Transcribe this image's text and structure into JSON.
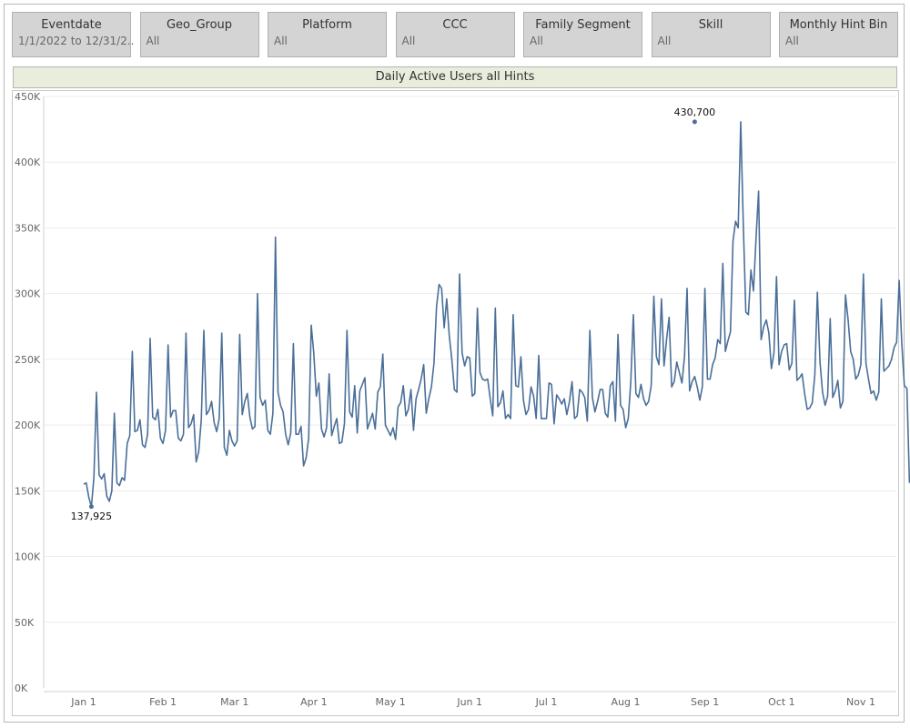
{
  "filters": [
    {
      "name": "Eventdate",
      "value": "1/1/2022 to 12/31/2.."
    },
    {
      "name": "Geo_Group",
      "value": "All"
    },
    {
      "name": "Platform",
      "value": "All"
    },
    {
      "name": "CCC",
      "value": "All"
    },
    {
      "name": "Family Segment",
      "value": "All"
    },
    {
      "name": "Skill",
      "value": "All"
    },
    {
      "name": "Monthly Hint Bin",
      "value": "All"
    }
  ],
  "chart_title": "Daily Active Users all Hints",
  "colors": {
    "line": "#4a6f99",
    "title_bg": "#e8eddc",
    "filter_bg": "#d4d4d4"
  },
  "chart_data": {
    "type": "line",
    "title": "Daily Active Users all Hints",
    "xlabel": "",
    "ylabel": "",
    "ylim": [
      0,
      450000
    ],
    "xlim": [
      "2022-01-01",
      "2022-11-01"
    ],
    "grid": true,
    "y_ticks": [
      0,
      50000,
      100000,
      150000,
      200000,
      250000,
      300000,
      350000,
      400000,
      450000
    ],
    "y_tick_labels": [
      "0K",
      "50K",
      "100K",
      "150K",
      "200K",
      "250K",
      "300K",
      "350K",
      "400K",
      "450K"
    ],
    "x_ticks": [
      "2022-01-01",
      "2022-02-01",
      "2022-03-01",
      "2022-04-01",
      "2022-05-01",
      "2022-06-01",
      "2022-07-01",
      "2022-08-01",
      "2022-09-01",
      "2022-10-01",
      "2022-11-01"
    ],
    "x_tick_labels": [
      "Jan 1",
      "Feb 1",
      "Mar 1",
      "Apr 1",
      "May 1",
      "Jun 1",
      "Jul 1",
      "Aug 1",
      "Sep 1",
      "Oct 1",
      "Nov 1"
    ],
    "annotations": [
      {
        "x": "2022-01-04",
        "y": 137925,
        "label": "137,925"
      },
      {
        "x": "2022-08-28",
        "y": 430700,
        "label": "430,700"
      }
    ],
    "series": [
      {
        "start": "2022-01-01",
        "values": [
          155000,
          156000,
          145000,
          137925,
          160000,
          225000,
          162000,
          159000,
          163000,
          146000,
          142000,
          150000,
          209000,
          156000,
          154000,
          160000,
          158000,
          186000,
          192000,
          256000,
          195000,
          196000,
          204000,
          185000,
          183000,
          193000,
          266000,
          206000,
          204000,
          212000,
          190000,
          186000,
          196000,
          261000,
          206000,
          211000,
          211000,
          190000,
          188000,
          193000,
          270000,
          198000,
          201000,
          208000,
          172000,
          180000,
          204000,
          272000,
          208000,
          211000,
          218000,
          202000,
          195000,
          205000,
          270000,
          183000,
          177000,
          196000,
          188000,
          184000,
          188000,
          269000,
          208000,
          218000,
          224000,
          206000,
          197000,
          199000,
          300000,
          221000,
          215000,
          219000,
          196000,
          193000,
          209000,
          343000,
          225000,
          215000,
          210000,
          193000,
          185000,
          194000,
          262000,
          193000,
          193000,
          199000,
          169000,
          175000,
          190000,
          276000,
          255000,
          222000,
          232000,
          197000,
          191000,
          198000,
          239000,
          192000,
          199000,
          205000,
          186000,
          187000,
          201000,
          272000,
          210000,
          206000,
          230000,
          194000,
          226000,
          231000,
          236000,
          197000,
          203000,
          209000,
          197000,
          225000,
          229000,
          254000,
          200000,
          196000,
          192000,
          198000,
          189000,
          214000,
          217000,
          230000,
          207000,
          212000,
          227000,
          196000,
          220000,
          227000,
          235000,
          246000,
          209000,
          220000,
          229000,
          247000,
          290000,
          307000,
          304000,
          274000,
          296000,
          268000,
          250000,
          227000,
          225000,
          315000,
          255000,
          245000,
          252000,
          251000,
          222000,
          224000,
          289000,
          240000,
          235000,
          234000,
          235000,
          220000,
          207000,
          289000,
          214000,
          217000,
          226000,
          205000,
          208000,
          205000,
          284000,
          230000,
          229000,
          252000,
          219000,
          208000,
          212000,
          229000,
          222000,
          205000,
          253000,
          205000,
          205000,
          205000,
          232000,
          231000,
          201000,
          223000,
          220000,
          216000,
          220000,
          208000,
          218000,
          233000,
          205000,
          207000,
          227000,
          225000,
          221000,
          203000,
          272000,
          221000,
          210000,
          218000,
          227000,
          227000,
          209000,
          206000,
          230000,
          233000,
          203000,
          269000,
          215000,
          212000,
          198000,
          205000,
          233000,
          284000,
          224000,
          221000,
          231000,
          220000,
          215000,
          218000,
          230000,
          298000,
          252000,
          246000,
          296000,
          245000,
          265000,
          282000,
          229000,
          233000,
          248000,
          240000,
          232000,
          252000,
          304000,
          226000,
          233000,
          237000,
          229000,
          219000,
          229000,
          304000,
          235000,
          235000,
          246000,
          251000,
          265000,
          262000,
          323000,
          256000,
          264000,
          271000,
          340000,
          355000,
          350000,
          430700,
          353000,
          286000,
          284000,
          318000,
          302000,
          342000,
          378000,
          265000,
          275000,
          280000,
          270000,
          243000,
          255000,
          313000,
          246000,
          256000,
          261000,
          262000,
          242000,
          247000,
          295000,
          234000,
          236000,
          239000,
          224000,
          212000,
          213000,
          217000,
          238000,
          301000,
          248000,
          225000,
          215000,
          222000,
          281000,
          221000,
          226000,
          234000,
          213000,
          218000,
          299000,
          280000,
          256000,
          250000,
          235000,
          238000,
          246000,
          315000,
          247000,
          235000,
          224000,
          226000,
          219000,
          225000,
          296000,
          241000,
          243000,
          245000,
          250000,
          259000,
          263000,
          310000,
          263000,
          230000,
          228000,
          156000
        ]
      }
    ]
  }
}
